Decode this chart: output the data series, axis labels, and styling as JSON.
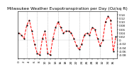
{
  "title": "Milwaukee Weather Evapotranspiration per Day (Oz/sq ft)",
  "line_color": "#ff0000",
  "marker_color": "#000000",
  "bg_color": "#ffffff",
  "plot_bg_color": "#ffffff",
  "grid_color": "#888888",
  "ylim": [
    -0.1,
    0.16
  ],
  "yticks": [
    0.14,
    0.12,
    0.1,
    0.08,
    0.06,
    0.04,
    0.02,
    0.0,
    -0.02,
    -0.04,
    -0.06,
    -0.08
  ],
  "title_fontsize": 4.2,
  "tick_fontsize": 3.0,
  "linewidth": 0.7,
  "markersize": 1.0,
  "values": [
    0.04,
    0.03,
    0.01,
    0.08,
    0.11,
    0.05,
    -0.02,
    -0.07,
    -0.08,
    0.01,
    0.05,
    -0.07,
    -0.08,
    0.01,
    0.07,
    0.1,
    0.07,
    0.04,
    0.05,
    0.05,
    0.04,
    0.01,
    -0.03,
    -0.05,
    -0.02,
    0.03,
    0.04,
    0.03,
    0.07,
    0.06,
    0.01,
    -0.03,
    0.0,
    0.1,
    0.13,
    0.11,
    -0.06,
    0.02
  ],
  "x_tick_every": 4,
  "n_gridlines": 8,
  "gridline_positions": [
    3,
    7,
    11,
    15,
    19,
    23,
    27,
    31
  ]
}
